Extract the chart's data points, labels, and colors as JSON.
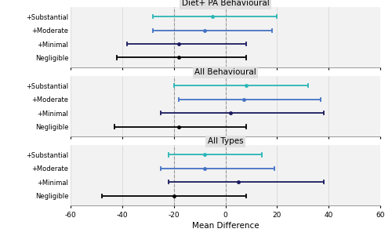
{
  "panels": [
    {
      "title": "Diet+ PA Behavioural",
      "categories": [
        "+Substantial",
        "+Moderate",
        "+Minimal",
        "Negligible"
      ],
      "points": [
        -5,
        -8,
        -18,
        -18
      ],
      "ci_low": [
        -28,
        -28,
        -38,
        -42
      ],
      "ci_high": [
        20,
        18,
        8,
        8
      ],
      "colors": [
        "#2ab5b5",
        "#4472c4",
        "#1a1a5e",
        "#000000"
      ]
    },
    {
      "title": "All Behavioural",
      "categories": [
        "+Substantial",
        "+Moderate",
        "+Minimal",
        "Negligible"
      ],
      "points": [
        8,
        7,
        2,
        -18
      ],
      "ci_low": [
        -20,
        -18,
        -25,
        -43
      ],
      "ci_high": [
        32,
        37,
        38,
        8
      ],
      "colors": [
        "#2ab5b5",
        "#4472c4",
        "#1a1a5e",
        "#000000"
      ]
    },
    {
      "title": "All Types",
      "categories": [
        "+Substantial",
        "+Moderate",
        "+Minimal",
        "Negligible"
      ],
      "points": [
        -8,
        -8,
        5,
        -20
      ],
      "ci_low": [
        -22,
        -25,
        -22,
        -48
      ],
      "ci_high": [
        14,
        19,
        38,
        8
      ],
      "colors": [
        "#2ab5b5",
        "#4472c4",
        "#1a1a5e",
        "#000000"
      ]
    }
  ],
  "xlim": [
    -60,
    60
  ],
  "xticks": [
    -60,
    -40,
    -20,
    0,
    20,
    40,
    60
  ],
  "xlabel": "Mean Difference",
  "dashed_lines": [
    -20,
    0
  ],
  "background_color": "#ffffff",
  "panel_bg_color": "#f2f2f2",
  "title_bg_color": "#e0e0e0"
}
